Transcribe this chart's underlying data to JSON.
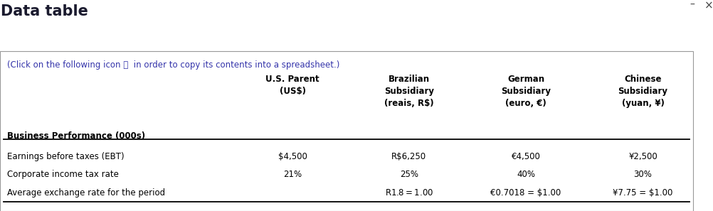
{
  "title": "Data table",
  "subtitle": "(Click on the following icon ⧉  in order to copy its contents into a spreadsheet.)",
  "bg_color": "#ffffff",
  "border_color": "#999999",
  "title_color": "#1a1a2e",
  "subtitle_color": "#3333aa",
  "header_color": "#000000",
  "row_color": "#000000",
  "col_headers": [
    "Business Performance (000s)",
    "U.S. Parent\n(US$)",
    "Brazilian\nSubsidiary\n(reais, R$)",
    "German\nSubsidiary\n(euro, €)",
    "Chinese\nSubsidiary\n(yuan, ¥)"
  ],
  "rows": [
    [
      "Earnings before taxes (EBT)",
      "$4,500",
      "R$6,250",
      "€4,500",
      "¥2,500"
    ],
    [
      "Corporate income tax rate",
      "21%",
      "25%",
      "40%",
      "30%"
    ],
    [
      "Average exchange rate for the period",
      "",
      "R$1.8 = $1.00",
      "€0.7018 = $1.00",
      "¥7.75 = $1.00"
    ]
  ],
  "title_fontsize": 15,
  "subtitle_fontsize": 8.5,
  "header_fontsize": 8.5,
  "data_fontsize": 8.5
}
